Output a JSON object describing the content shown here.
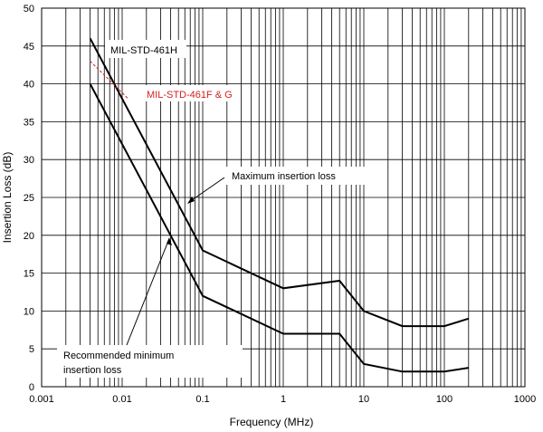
{
  "chart_data": {
    "type": "line",
    "xlabel": "Frequency  (MHz)",
    "ylabel": "Insertion Loss (dB)",
    "x_scale": "log",
    "xlim": [
      0.001,
      1000
    ],
    "ylim": [
      0,
      50
    ],
    "x_ticks": [
      {
        "value": 0.001,
        "label": "0.001"
      },
      {
        "value": 0.01,
        "label": "0.01"
      },
      {
        "value": 0.1,
        "label": "0.1"
      },
      {
        "value": 1,
        "label": "1"
      },
      {
        "value": 10,
        "label": "10"
      },
      {
        "value": 100,
        "label": "100"
      },
      {
        "value": 1000,
        "label": "1000"
      }
    ],
    "y_ticks": [
      0,
      5,
      10,
      15,
      20,
      25,
      30,
      35,
      40,
      45,
      50
    ],
    "grid": true,
    "series": [
      {
        "name": "Maximum insertion loss",
        "color": "#000000",
        "x": [
          0.004,
          0.1,
          1,
          5,
          10,
          30,
          100,
          200
        ],
        "y": [
          46,
          18,
          13,
          14,
          10,
          8,
          8,
          9
        ]
      },
      {
        "name": "Recommended minimum insertion loss",
        "color": "#000000",
        "x": [
          0.004,
          0.1,
          1,
          5,
          10,
          30,
          100,
          200
        ],
        "y": [
          40,
          12,
          7,
          7,
          3,
          2,
          2,
          2.5
        ]
      },
      {
        "name": "MIL-STD-461F & G",
        "color": "#d42020",
        "style": "dashed",
        "x": [
          0.004,
          0.012
        ],
        "y": [
          43,
          38
        ]
      }
    ],
    "annotations": {
      "mil461h": "MIL-STD-461H",
      "mil461fg": "MIL-STD-461F & G",
      "max_loss": "Maximum insertion loss",
      "min_loss_line1": "Recommended minimum",
      "min_loss_line2": "insertion loss"
    }
  }
}
